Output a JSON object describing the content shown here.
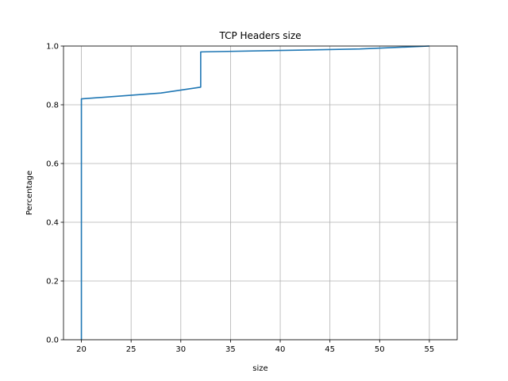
{
  "chart_data": {
    "type": "line",
    "title": "TCP Headers size",
    "xlabel": "size",
    "ylabel": "Percentage",
    "xlim": [
      18.2,
      57.8
    ],
    "ylim": [
      0,
      1.0
    ],
    "grid": true,
    "xticks": [
      20,
      25,
      30,
      35,
      40,
      45,
      50,
      55
    ],
    "yticks": [
      0.0,
      0.2,
      0.4,
      0.6,
      0.8,
      1.0
    ],
    "xtick_labels": [
      "20",
      "25",
      "30",
      "35",
      "40",
      "45",
      "50",
      "55"
    ],
    "ytick_labels": [
      "0.0",
      "0.2",
      "0.4",
      "0.6",
      "0.8",
      "1.0"
    ],
    "series": [
      {
        "color": "#1f77b4",
        "x": [
          20,
          20,
          28,
          32,
          32,
          40,
          48,
          55
        ],
        "y": [
          0.0,
          0.82,
          0.84,
          0.86,
          0.98,
          0.985,
          0.99,
          1.0
        ]
      }
    ]
  }
}
